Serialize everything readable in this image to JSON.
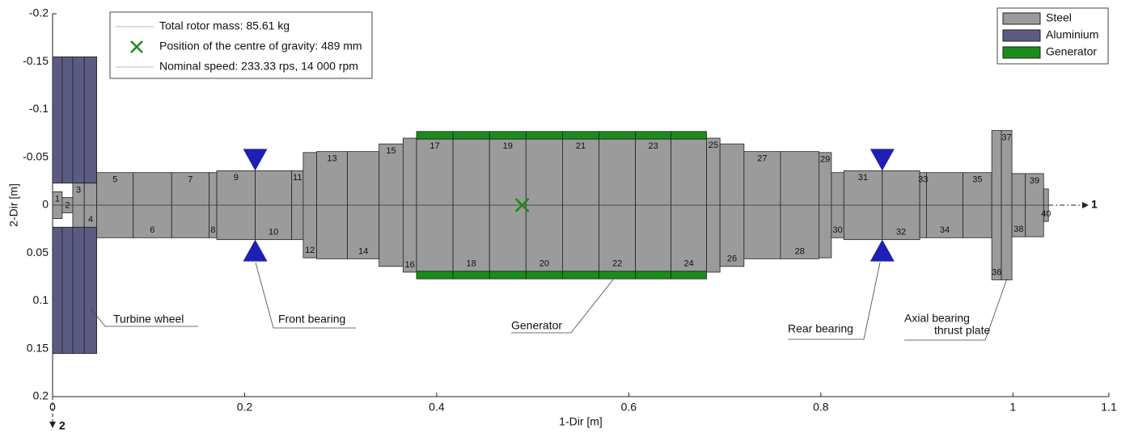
{
  "axes": {
    "xlabel": "1-Dir [m]",
    "ylabel": "2-Dir [m]",
    "xlim": [
      0,
      1.1
    ],
    "ylim": [
      -0.2,
      0.2
    ],
    "xticks": [
      0,
      0.2,
      0.4,
      0.6,
      0.8,
      1,
      1.1
    ],
    "yticks": [
      -0.2,
      -0.15,
      -0.1,
      -0.05,
      0,
      0.05,
      0.1,
      0.15,
      0.2
    ],
    "x_arrow": "1",
    "y_arrow": "2"
  },
  "info": [
    "Total rotor mass: 85.61 kg",
    "Position of the centre of gravity: 489 mm",
    "Nominal speed: 233.33 rps, 14 000 rpm"
  ],
  "centre_of_gravity": {
    "x": 0.489,
    "y": 0,
    "color": "#1a8a1a"
  },
  "materials": [
    {
      "name": "Steel",
      "color": "#9b9b9b"
    },
    {
      "name": "Aluminium",
      "color": "#5b5b82"
    },
    {
      "name": "Generator",
      "color": "#1a8c1a"
    }
  ],
  "elements": [
    {
      "label": "1",
      "x0": 0,
      "x1": 0.01,
      "r": 0.014,
      "material": 0,
      "outer": {
        "r_in": 0.023,
        "r_out": 0.155,
        "material": 1
      }
    },
    {
      "label": "2",
      "x0": 0.01,
      "x1": 0.021,
      "r": 0.008,
      "material": 0,
      "outer": {
        "r_in": 0.023,
        "r_out": 0.155,
        "material": 1
      }
    },
    {
      "label": "3",
      "x0": 0.021,
      "x1": 0.033,
      "r": 0.023,
      "material": 0,
      "outer": {
        "r_in": 0.023,
        "r_out": 0.155,
        "material": 1
      }
    },
    {
      "label": "4",
      "x0": 0.033,
      "x1": 0.046,
      "r": 0.023,
      "material": 0,
      "outer": {
        "r_in": 0.023,
        "r_out": 0.155,
        "material": 1
      }
    },
    {
      "label": "5",
      "x0": 0.046,
      "x1": 0.084,
      "r": 0.034,
      "material": 0
    },
    {
      "label": "6",
      "x0": 0.084,
      "x1": 0.124,
      "r": 0.034,
      "material": 0
    },
    {
      "label": "7",
      "x0": 0.124,
      "x1": 0.163,
      "r": 0.034,
      "material": 0
    },
    {
      "label": "8",
      "x0": 0.163,
      "x1": 0.171,
      "r": 0.034,
      "material": 0
    },
    {
      "label": "9",
      "x0": 0.171,
      "x1": 0.211,
      "r": 0.036,
      "material": 0
    },
    {
      "label": "10",
      "x0": 0.211,
      "x1": 0.249,
      "r": 0.036,
      "material": 0
    },
    {
      "label": "11",
      "x0": 0.249,
      "x1": 0.261,
      "r": 0.036,
      "material": 0
    },
    {
      "label": "12",
      "x0": 0.261,
      "x1": 0.275,
      "r": 0.055,
      "material": 0
    },
    {
      "label": "13",
      "x0": 0.275,
      "x1": 0.307,
      "r": 0.056,
      "material": 0
    },
    {
      "label": "14",
      "x0": 0.307,
      "x1": 0.34,
      "r": 0.056,
      "material": 0
    },
    {
      "label": "15",
      "x0": 0.34,
      "x1": 0.365,
      "r": 0.064,
      "material": 0
    },
    {
      "label": "16",
      "x0": 0.365,
      "x1": 0.379,
      "r": 0.07,
      "material": 0
    },
    {
      "label": "17",
      "x0": 0.379,
      "x1": 0.417,
      "r": 0.069,
      "material": 0,
      "outer": {
        "r_in": 0.069,
        "r_out": 0.077,
        "material": 2
      }
    },
    {
      "label": "18",
      "x0": 0.417,
      "x1": 0.455,
      "r": 0.069,
      "material": 0,
      "outer": {
        "r_in": 0.069,
        "r_out": 0.077,
        "material": 2
      }
    },
    {
      "label": "19",
      "x0": 0.455,
      "x1": 0.493,
      "r": 0.069,
      "material": 0,
      "outer": {
        "r_in": 0.069,
        "r_out": 0.077,
        "material": 2
      }
    },
    {
      "label": "20",
      "x0": 0.493,
      "x1": 0.531,
      "r": 0.069,
      "material": 0,
      "outer": {
        "r_in": 0.069,
        "r_out": 0.077,
        "material": 2
      }
    },
    {
      "label": "21",
      "x0": 0.531,
      "x1": 0.569,
      "r": 0.069,
      "material": 0,
      "outer": {
        "r_in": 0.069,
        "r_out": 0.077,
        "material": 2
      }
    },
    {
      "label": "22",
      "x0": 0.569,
      "x1": 0.607,
      "r": 0.069,
      "material": 0,
      "outer": {
        "r_in": 0.069,
        "r_out": 0.077,
        "material": 2
      }
    },
    {
      "label": "23",
      "x0": 0.607,
      "x1": 0.644,
      "r": 0.069,
      "material": 0,
      "outer": {
        "r_in": 0.069,
        "r_out": 0.077,
        "material": 2
      }
    },
    {
      "label": "24",
      "x0": 0.644,
      "x1": 0.681,
      "r": 0.069,
      "material": 0,
      "outer": {
        "r_in": 0.069,
        "r_out": 0.077,
        "material": 2
      }
    },
    {
      "label": "25",
      "x0": 0.681,
      "x1": 0.695,
      "r": 0.07,
      "material": 0
    },
    {
      "label": "26",
      "x0": 0.695,
      "x1": 0.72,
      "r": 0.064,
      "material": 0
    },
    {
      "label": "27",
      "x0": 0.72,
      "x1": 0.758,
      "r": 0.056,
      "material": 0
    },
    {
      "label": "28",
      "x0": 0.758,
      "x1": 0.798,
      "r": 0.056,
      "material": 0
    },
    {
      "label": "29",
      "x0": 0.798,
      "x1": 0.811,
      "r": 0.055,
      "material": 0
    },
    {
      "label": "30",
      "x0": 0.811,
      "x1": 0.824,
      "r": 0.034,
      "material": 0
    },
    {
      "label": "31",
      "x0": 0.824,
      "x1": 0.864,
      "r": 0.036,
      "material": 0
    },
    {
      "label": "32",
      "x0": 0.864,
      "x1": 0.903,
      "r": 0.036,
      "material": 0
    },
    {
      "label": "33",
      "x0": 0.903,
      "x1": 0.91,
      "r": 0.034,
      "material": 0
    },
    {
      "label": "34",
      "x0": 0.91,
      "x1": 0.948,
      "r": 0.034,
      "material": 0
    },
    {
      "label": "35",
      "x0": 0.948,
      "x1": 0.978,
      "r": 0.034,
      "material": 0
    },
    {
      "label": "36",
      "x0": 0.978,
      "x1": 0.988,
      "r": 0.078,
      "material": 0
    },
    {
      "label": "37",
      "x0": 0.988,
      "x1": 0.999,
      "r": 0.078,
      "material": 0
    },
    {
      "label": "38",
      "x0": 0.999,
      "x1": 1.013,
      "r": 0.033,
      "material": 0
    },
    {
      "label": "39",
      "x0": 1.013,
      "x1": 1.032,
      "r": 0.033,
      "material": 0
    },
    {
      "label": "40",
      "x0": 1.032,
      "x1": 1.037,
      "r": 0.017,
      "material": 0
    }
  ],
  "bearings": [
    {
      "x": 0.211,
      "r": 0.036,
      "color": "#1f1fb4"
    },
    {
      "x": 0.864,
      "r": 0.036,
      "color": "#1f1fb4"
    }
  ],
  "callouts": [
    [
      "Turbine wheel"
    ],
    [
      "Front bearing"
    ],
    [
      "Generator"
    ],
    [
      "Rear bearing"
    ],
    [
      "Axial bearing",
      "thrust plate"
    ]
  ]
}
